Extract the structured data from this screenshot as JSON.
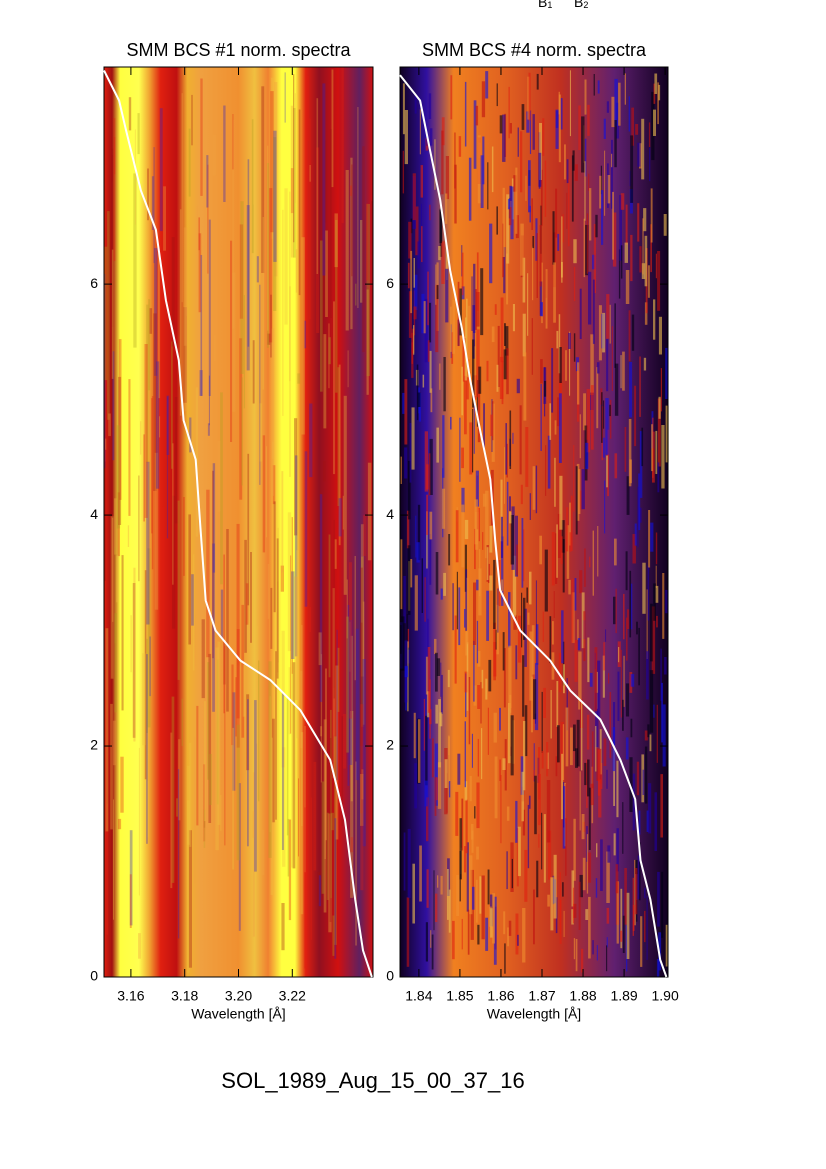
{
  "chart_data": [
    {
      "type": "line",
      "title": "SMM BCS #1 norm. spectra",
      "x_label": "Wavelength [Å]",
      "color": "#ffffff",
      "xlim": [
        3.15,
        3.25
      ],
      "ylim": [
        0,
        7.88
      ],
      "xticks": [
        3.16,
        3.18,
        {
          "value": 3.2,
          "label": "3.20"
        },
        3.22
      ],
      "yticks": [
        0,
        2,
        4,
        6
      ],
      "x": [
        3.15,
        3.1556,
        3.1582,
        3.1637,
        3.1693,
        3.173,
        3.1778,
        3.1796,
        3.1841,
        3.1859,
        3.1878,
        3.1915,
        3.2007,
        3.2119,
        3.223,
        3.2341,
        3.2396,
        3.2434,
        3.2463,
        3.2496
      ],
      "values": [
        7.85,
        7.59,
        7.33,
        6.81,
        6.47,
        5.86,
        5.34,
        4.82,
        4.48,
        3.87,
        3.26,
        3.0,
        2.74,
        2.57,
        2.31,
        1.88,
        1.36,
        0.67,
        0.23,
        0
      ]
    },
    {
      "type": "line",
      "title": "SMM BCS #4 norm. spectra",
      "x_label": "Wavelength [Å]",
      "color": "#ffffff",
      "xlim": [
        1.8354,
        1.9007
      ],
      "ylim": [
        0,
        7.88
      ],
      "xticks": [
        1.84,
        1.85,
        1.86,
        1.87,
        1.88,
        1.89,
        {
          "value": 1.9,
          "label": "1.90"
        }
      ],
      "yticks": [
        0,
        2,
        4,
        6
      ],
      "x": [
        1.8354,
        1.8403,
        1.8427,
        1.8452,
        1.8476,
        1.8505,
        1.8525,
        1.8549,
        1.8574,
        1.8586,
        1.8598,
        1.8647,
        1.872,
        1.8769,
        1.8842,
        1.8891,
        1.8927,
        1.894,
        1.8964,
        1.8988,
        1.9003
      ],
      "values": [
        7.81,
        7.59,
        7.16,
        6.73,
        6.12,
        5.61,
        5.17,
        4.74,
        4.31,
        3.78,
        3.35,
        3.0,
        2.74,
        2.48,
        2.23,
        1.88,
        1.54,
        1.01,
        0.67,
        0.15,
        0
      ]
    }
  ],
  "top_labels": [
    {
      "main": "B",
      "sub": "1"
    },
    {
      "main": "B",
      "sub": "2"
    }
  ],
  "footer": "SOL_1989_Aug_15_00_37_16"
}
